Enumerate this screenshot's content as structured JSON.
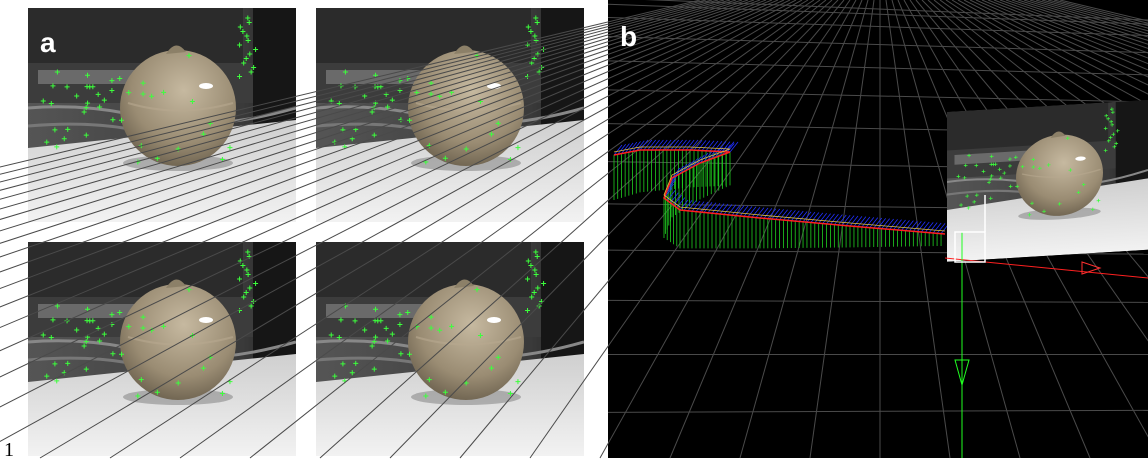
{
  "panel_a": {
    "label": "a"
  },
  "panel_b": {
    "label": "b"
  },
  "footer": {
    "page_number": "1"
  }
}
